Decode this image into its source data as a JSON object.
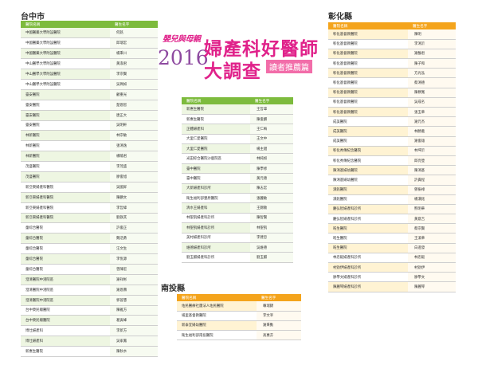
{
  "brand": "嬰兒與母親",
  "year": "2016",
  "headline_line1": "婦產科好醫師",
  "headline_line2": "大調查",
  "badge": "讀者推薦篇",
  "columns": {
    "hospital": "醫院名稱",
    "doctor": "醫生名字"
  },
  "taichung": {
    "title": "台中市",
    "rows": [
      [
        "中國醫藥大學附設醫院",
        "何銘"
      ],
      [
        "中國醫藥大學附設醫院",
        "邱瑞宏"
      ],
      [
        "中國醫藥大學附設醫院",
        "楊秉川"
      ],
      [
        "中山醫學大學附設醫院",
        "黃淑君"
      ],
      [
        "中山醫學大學附設醫院",
        "李宗賢"
      ],
      [
        "中山醫學大學附設醫院",
        "吳珮如"
      ],
      [
        "臺安醫院",
        "顧重光"
      ],
      [
        "臺安醫院",
        "楚恩智"
      ],
      [
        "臺安醫院",
        "唐正大"
      ],
      [
        "臺安醫院",
        "吳明軒"
      ],
      [
        "林新醫院",
        "林宗敏"
      ],
      [
        "林新醫院",
        "張鴻逸"
      ],
      [
        "林新醫院",
        "楊曉君"
      ],
      [
        "茂盛醫院",
        "李茂盛"
      ],
      [
        "茂盛醫院",
        "廖俊旭"
      ],
      [
        "新亞東婦產科醫院",
        "吳國昇"
      ],
      [
        "新亞東婦產科醫院",
        "陳鵬文"
      ],
      [
        "新亞東婦產科醫院",
        "李哲緯"
      ],
      [
        "新亞東婦產科醫院",
        "劉鉄其"
      ],
      [
        "童綜合醫院",
        "許俊正"
      ],
      [
        "童綜合醫院",
        "魏浩勇"
      ],
      [
        "童綜合醫院",
        "汪文生"
      ],
      [
        "童綜合醫院",
        "李悅源"
      ],
      [
        "童綜合醫院",
        "曾陳宏"
      ],
      [
        "澄清醫院中港院區",
        "謝祥彬"
      ],
      [
        "澄清醫院中港院區",
        "謝恩壽"
      ],
      [
        "澄清醫院中港院區",
        "郭晉慧"
      ],
      [
        "台中榮民總醫院",
        "陳雅方"
      ],
      [
        "台中榮民總醫院",
        "葛寅峰"
      ],
      [
        "博仕婦產科",
        "李新方"
      ],
      [
        "博仕婦產科",
        "吳家鳳"
      ],
      [
        "新惠生醫院",
        "陳秋水"
      ]
    ]
  },
  "middle": {
    "rows": [
      [
        "新惠生醫院",
        "王哲瑋"
      ],
      [
        "新惠生醫院",
        "陳俊麟"
      ],
      [
        "正體婦產科",
        "王仁梅"
      ],
      [
        "大里仁愛醫院",
        "王文中"
      ],
      [
        "大里仁愛醫院",
        "楊主錕"
      ],
      [
        "光田綜合醫院沙鹿院區",
        "林純如"
      ],
      [
        "臺中醫院",
        "陳學修"
      ],
      [
        "臺中醫院",
        "黃元德"
      ],
      [
        "大新婦產科診所",
        "陳志宏"
      ],
      [
        "衛生福利部豐原醫院",
        "張麗敏"
      ],
      [
        "清水王婦產科",
        "王錦敬"
      ],
      [
        "林聖凱婦產科診所",
        "陳智賢"
      ],
      [
        "林聖凱婦產科診所",
        "林聖凱"
      ],
      [
        "美村婦產科診所",
        "李建忠"
      ],
      [
        "維德婦產科診所",
        "吳維德"
      ],
      [
        "劉玉麒婦產科診所",
        "劉玉麒"
      ]
    ]
  },
  "nantou": {
    "title": "南投縣",
    "rows": [
      [
        "佑民醫療社團法人佑民醫院",
        "賴瑞錦"
      ],
      [
        "埔里基督教醫院",
        "李文宰"
      ],
      [
        "新泰宜婦幼醫院",
        "謝秉勳"
      ],
      [
        "衛生福利部南投醫院",
        "高惠芬"
      ]
    ]
  },
  "changhua": {
    "title": "彰化縣",
    "rows": [
      [
        "彰化基督教醫院",
        "陳明"
      ],
      [
        "彰化基督教醫院",
        "李鴻沂"
      ],
      [
        "彰化基督教醫院",
        "謝馥君"
      ],
      [
        "彰化基督教醫院",
        "陳子和"
      ],
      [
        "彰化基督教醫院",
        "方光泓"
      ],
      [
        "彰化基督教醫院",
        "蔡鴻德"
      ],
      [
        "彰化基督教醫院",
        "陳穆寬"
      ],
      [
        "彰化基督教醫院",
        "吳成名"
      ],
      [
        "彰化基督教醫院",
        "張玉華"
      ],
      [
        "成美醫院",
        "謝元杰"
      ],
      [
        "成美醫院",
        "林勝義"
      ],
      [
        "成美醫院",
        "謝俊雄"
      ],
      [
        "彰化秀傳紀念醫院",
        "林坤沂"
      ],
      [
        "彰化秀傳紀念醫院",
        "邱亮瑩"
      ],
      [
        "陳鴻基婦幼醫院",
        "陳鴻基"
      ],
      [
        "陳鴻基婦幼醫院",
        "許貴程"
      ],
      [
        "漢銘醫院",
        "鄧振祿"
      ],
      [
        "漢銘醫院",
        "楊漢銘"
      ],
      [
        "慶弘智婦產科診所",
        "熊明華"
      ],
      [
        "慶弘智婦產科診所",
        "黃意吉"
      ],
      [
        "皓生醫院",
        "蔡宗賢"
      ],
      [
        "皓生醫院",
        "王溪華"
      ],
      [
        "皓生醫院",
        "白進發"
      ],
      [
        "林忠毅婦產科診所",
        "林忠毅"
      ],
      [
        "村勁伊婦產科診所",
        "村勁伊"
      ],
      [
        "廖學文婦產科診所",
        "廖學文"
      ],
      [
        "陳麗琴婦產科診所",
        "陳麗琴"
      ]
    ]
  }
}
